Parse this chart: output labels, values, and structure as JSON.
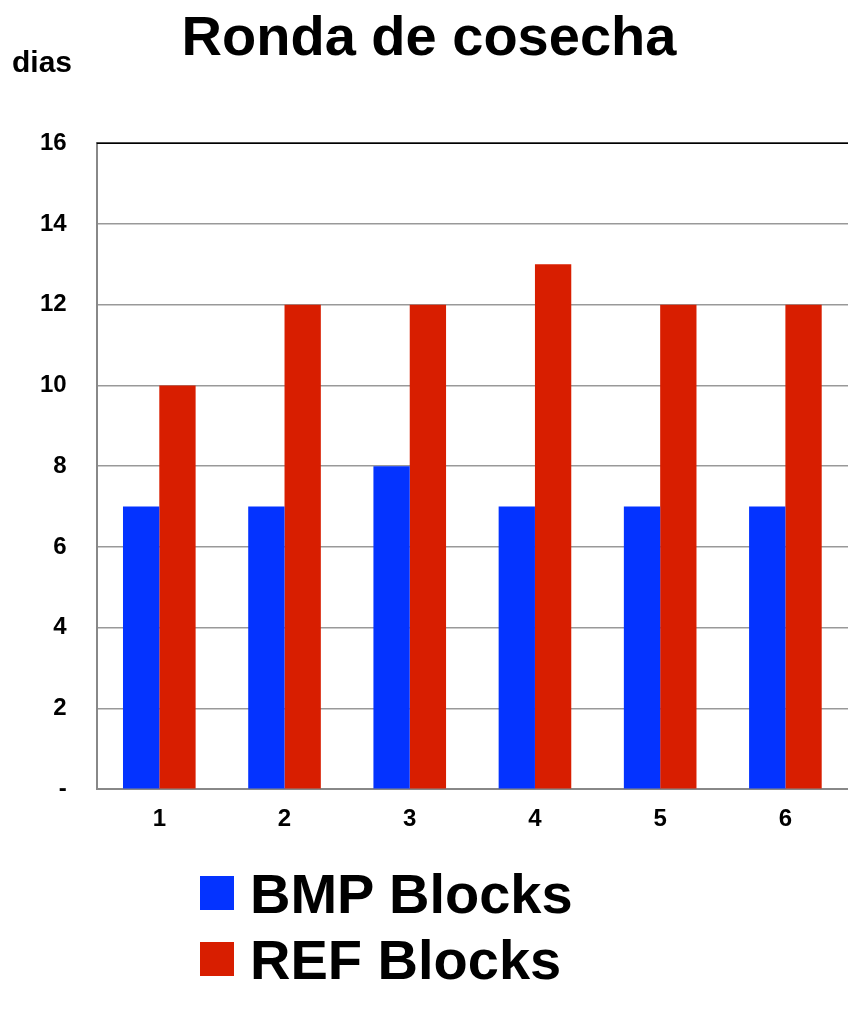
{
  "chart_data": {
    "type": "bar",
    "title": "Ronda de cosecha",
    "ylabel": "dias",
    "categories": [
      "1",
      "2",
      "3",
      "4",
      "5",
      "6"
    ],
    "series": [
      {
        "name": "BMP Blocks",
        "color": "#0433ff",
        "values": [
          7,
          7,
          8,
          7,
          7,
          7
        ]
      },
      {
        "name": "REF Blocks",
        "color": "#d81e00",
        "values": [
          10,
          12,
          12,
          13,
          12,
          12
        ]
      }
    ],
    "ylim": [
      0,
      16
    ],
    "yticks": [
      {
        "value": 0,
        "label": "-"
      },
      2,
      4,
      6,
      8,
      10,
      12,
      14,
      16
    ],
    "grid": "y",
    "legend": "bottom"
  }
}
